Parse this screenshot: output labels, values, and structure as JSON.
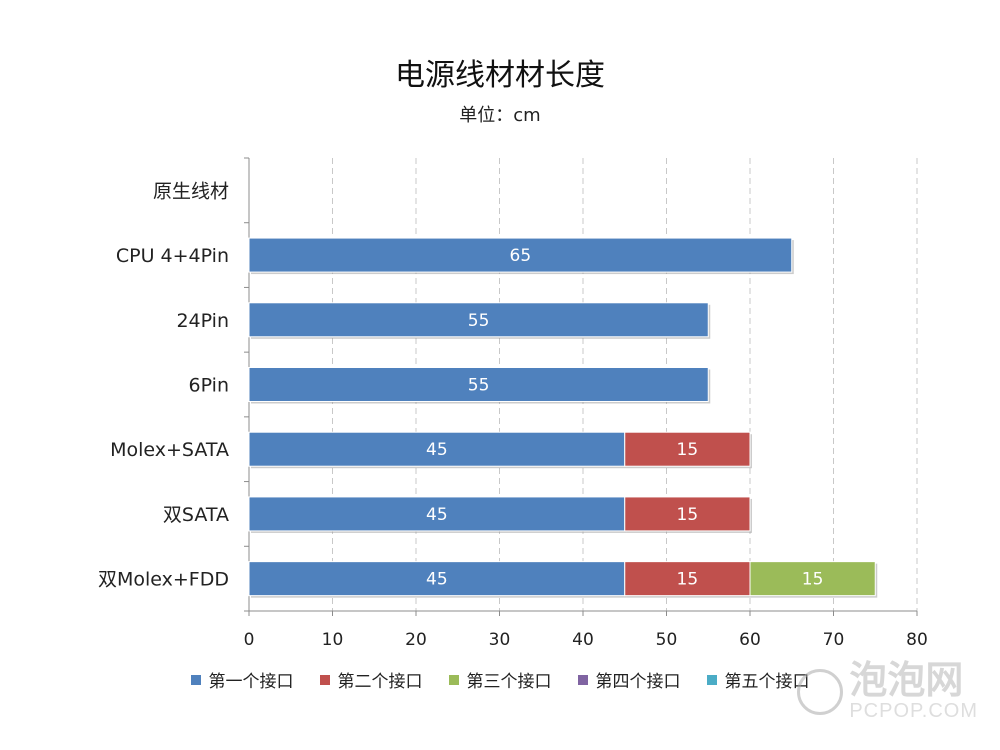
{
  "chart_data": {
    "type": "bar",
    "orientation": "horizontal",
    "stacked": true,
    "title": "电源线材材长度",
    "subtitle": "单位：cm",
    "categories": [
      "原生线材",
      "CPU 4+4Pin",
      "24Pin",
      "6Pin",
      "Molex+SATA",
      "双SATA",
      "双Molex+FDD"
    ],
    "series": [
      {
        "name": "第一个接口",
        "color": "#4F81BD",
        "values": [
          null,
          65,
          55,
          55,
          45,
          45,
          45
        ]
      },
      {
        "name": "第二个接口",
        "color": "#C0504D",
        "values": [
          null,
          null,
          null,
          null,
          15,
          15,
          15
        ]
      },
      {
        "name": "第三个接口",
        "color": "#9BBB59",
        "values": [
          null,
          null,
          null,
          null,
          null,
          null,
          15
        ]
      },
      {
        "name": "第四个接口",
        "color": "#8064A2",
        "values": [
          null,
          null,
          null,
          null,
          null,
          null,
          null
        ]
      },
      {
        "name": "第五个接口",
        "color": "#4BACC6",
        "values": [
          null,
          null,
          null,
          null,
          null,
          null,
          null
        ]
      }
    ],
    "xlim": [
      0,
      80
    ],
    "xticks": [
      0,
      10,
      20,
      30,
      40,
      50,
      60,
      70,
      80
    ],
    "grid": "vertical dashed",
    "legend_position": "bottom"
  },
  "watermark": {
    "brand": "泡泡网",
    "site": "PCPOP.COM"
  }
}
